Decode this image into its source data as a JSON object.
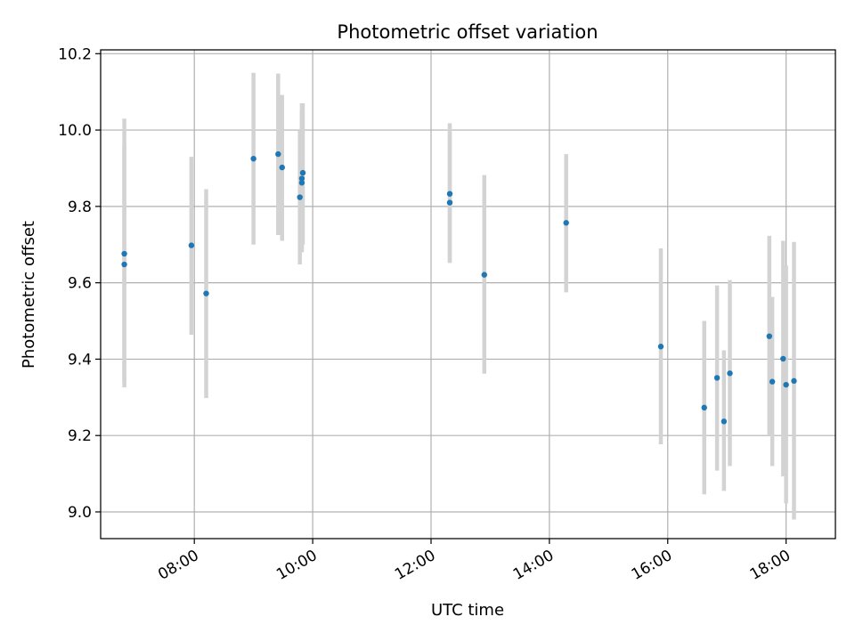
{
  "chart_data": {
    "type": "scatter",
    "title": "Photometric offset variation",
    "xlabel": "UTC time",
    "ylabel": "Photometric offset",
    "x_axis_type": "time",
    "xlim": [
      "06:25",
      "18:50"
    ],
    "ylim": [
      8.93,
      10.21
    ],
    "x_ticks": [
      "08:00",
      "10:00",
      "12:00",
      "14:00",
      "16:00",
      "18:00"
    ],
    "y_ticks": [
      9.0,
      9.2,
      9.4,
      9.6,
      9.8,
      10.0,
      10.2
    ],
    "y_tick_labels": [
      "9.0",
      "9.2",
      "9.4",
      "9.6",
      "9.8",
      "10.0",
      "10.2"
    ],
    "grid": true,
    "legend": "none",
    "colors": {
      "point": "#1f77b4",
      "errorbar": "#d3d3d3",
      "grid": "#b0b0b0",
      "axes": "#000000"
    },
    "series": [
      {
        "points": [
          {
            "x": "06:49",
            "y": 9.676,
            "err_low": 9.326,
            "err_high": 10.03
          },
          {
            "x": "06:49",
            "y": 9.648,
            "err_low": 9.343,
            "err_high": 9.958
          },
          {
            "x": "07:57",
            "y": 9.698,
            "err_low": 9.464,
            "err_high": 9.93
          },
          {
            "x": "08:12",
            "y": 9.572,
            "err_low": 9.298,
            "err_high": 9.845
          },
          {
            "x": "09:00",
            "y": 9.925,
            "err_low": 9.7,
            "err_high": 10.15
          },
          {
            "x": "09:25",
            "y": 9.937,
            "err_low": 9.725,
            "err_high": 10.148
          },
          {
            "x": "09:29",
            "y": 9.902,
            "err_low": 9.71,
            "err_high": 10.092
          },
          {
            "x": "09:47",
            "y": 9.824,
            "err_low": 9.648,
            "err_high": 10.0
          },
          {
            "x": "09:49",
            "y": 9.873,
            "err_low": 9.682,
            "err_high": 10.07
          },
          {
            "x": "09:49",
            "y": 9.862,
            "err_low": 9.68,
            "err_high": 10.05
          },
          {
            "x": "09:50",
            "y": 9.888,
            "err_low": 9.7,
            "err_high": 10.07
          },
          {
            "x": "12:19",
            "y": 9.833,
            "err_low": 9.652,
            "err_high": 10.018
          },
          {
            "x": "12:19",
            "y": 9.81,
            "err_low": 9.653,
            "err_high": 9.995
          },
          {
            "x": "12:54",
            "y": 9.621,
            "err_low": 9.362,
            "err_high": 9.882
          },
          {
            "x": "14:17",
            "y": 9.757,
            "err_low": 9.575,
            "err_high": 9.937
          },
          {
            "x": "15:53",
            "y": 9.433,
            "err_low": 9.177,
            "err_high": 9.69
          },
          {
            "x": "16:37",
            "y": 9.273,
            "err_low": 9.046,
            "err_high": 9.5
          },
          {
            "x": "16:50",
            "y": 9.351,
            "err_low": 9.108,
            "err_high": 9.593
          },
          {
            "x": "16:57",
            "y": 9.237,
            "err_low": 9.055,
            "err_high": 9.423
          },
          {
            "x": "17:03",
            "y": 9.363,
            "err_low": 9.12,
            "err_high": 9.607
          },
          {
            "x": "17:43",
            "y": 9.46,
            "err_low": 9.2,
            "err_high": 9.723
          },
          {
            "x": "17:46",
            "y": 9.341,
            "err_low": 9.12,
            "err_high": 9.563
          },
          {
            "x": "17:57",
            "y": 9.401,
            "err_low": 9.093,
            "err_high": 9.71
          },
          {
            "x": "18:00",
            "y": 9.333,
            "err_low": 9.022,
            "err_high": 9.645
          },
          {
            "x": "18:08",
            "y": 9.343,
            "err_low": 8.98,
            "err_high": 9.707
          }
        ]
      }
    ]
  }
}
